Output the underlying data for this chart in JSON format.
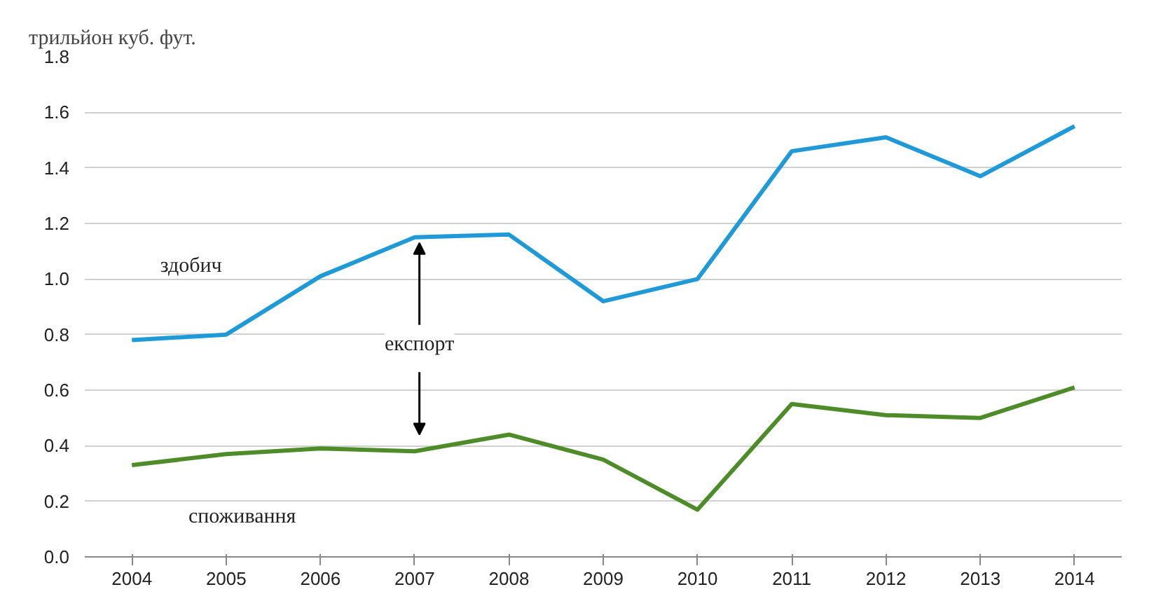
{
  "chart_data": {
    "type": "line",
    "ylabel": "трильйон куб. фут.",
    "categories": [
      "2004",
      "2005",
      "2006",
      "2007",
      "2008",
      "2009",
      "2010",
      "2011",
      "2012",
      "2013",
      "2014"
    ],
    "series": [
      {
        "name": "здобич",
        "color": "#1f9ad6",
        "values": [
          0.78,
          0.8,
          1.01,
          1.15,
          1.16,
          0.92,
          1.0,
          1.46,
          1.51,
          1.37,
          1.55
        ]
      },
      {
        "name": "споживання",
        "color": "#4e8c2a",
        "values": [
          0.33,
          0.37,
          0.39,
          0.38,
          0.44,
          0.35,
          0.17,
          0.55,
          0.51,
          0.5,
          0.61
        ]
      }
    ],
    "annotations": [
      {
        "text": "експорт",
        "x": "2007",
        "y": 1.15
      }
    ],
    "ylim": [
      0,
      1.8
    ],
    "yticks": [
      {
        "value": 0,
        "label": "0.0"
      },
      0.2,
      0.4,
      0.6,
      0.8,
      {
        "value": 1,
        "label": "1.0"
      },
      1.2,
      1.4,
      1.6,
      1.8
    ],
    "grid": "y",
    "marker": "none",
    "line_style": "solid",
    "legend": false
  }
}
